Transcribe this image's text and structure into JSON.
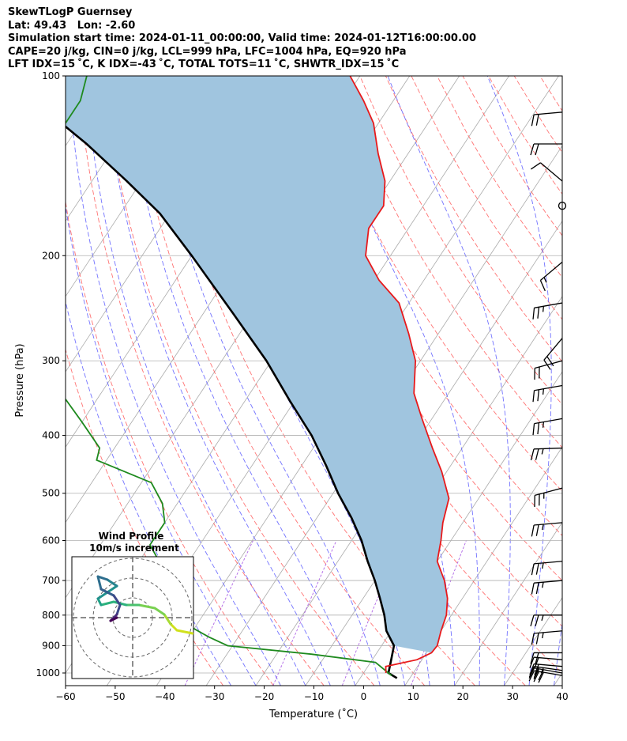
{
  "header": {
    "line1": "SkewTLogP Guernsey",
    "line2": "Lat: 49.43   Lon: -2.60",
    "line3": "Simulation start time: 2024-01-11_00:00:00, Valid time: 2024-01-12T16:00:00.00",
    "line4": "CAPE=20 j/kg, CIN=0 j/kg, LCL=999 hPa, LFC=1004 hPa, EQ=920 hPa",
    "line5": "LFT IDX=15 ˚C, K IDX=-43 ˚C, TOTAL TOTS=11 ˚C, SHWTR_IDX=15 ˚C"
  },
  "chart_data": {
    "type": "line",
    "subtype": "skew-T log-P diagram",
    "xlabel": "Temperature (˚C)",
    "ylabel": "Pressure (hPa)",
    "xlim": [
      -60,
      40
    ],
    "ylim": [
      1050,
      100
    ],
    "y_scale": "log",
    "x_ticks": [
      "−60",
      "−50",
      "−40",
      "−30",
      "−20",
      "−10",
      "0",
      "10",
      "20",
      "30",
      "40"
    ],
    "y_ticks": [
      "100",
      "200",
      "300",
      "400",
      "500",
      "600",
      "700",
      "800",
      "900",
      "1000"
    ],
    "grid": true,
    "series": [
      {
        "role": "temperature",
        "color": "#e8191b",
        "points": [
          [
            4.5,
            1000
          ],
          [
            3.6,
            975
          ],
          [
            9,
            950
          ],
          [
            11,
            925
          ],
          [
            11.2,
            900
          ],
          [
            10,
            850
          ],
          [
            9,
            800
          ],
          [
            7,
            750
          ],
          [
            4,
            700
          ],
          [
            0,
            650
          ],
          [
            -2,
            600
          ],
          [
            -4,
            560
          ],
          [
            -6,
            510
          ],
          [
            -11,
            460
          ],
          [
            -16,
            420
          ],
          [
            -22,
            375
          ],
          [
            -27,
            340
          ],
          [
            -31,
            300
          ],
          [
            -36,
            270
          ],
          [
            -42,
            240
          ],
          [
            -49,
            220
          ],
          [
            -55,
            200
          ],
          [
            -58,
            180
          ],
          [
            -58,
            165
          ],
          [
            -61,
            150
          ],
          [
            -66,
            135
          ],
          [
            -71,
            120
          ],
          [
            -76,
            110
          ],
          [
            -82,
            100
          ]
        ]
      },
      {
        "role": "dewpoint",
        "color": "#1e8a1e",
        "points": [
          [
            6,
            1010
          ],
          [
            5,
            1000
          ],
          [
            1,
            960
          ],
          [
            -13,
            930
          ],
          [
            -31,
            900
          ],
          [
            -36,
            870
          ],
          [
            -42,
            830
          ],
          [
            -47,
            780
          ],
          [
            -52,
            720
          ],
          [
            -56,
            650
          ],
          [
            -60,
            610
          ],
          [
            -60,
            560
          ],
          [
            -63,
            520
          ],
          [
            -68,
            480
          ],
          [
            -82,
            440
          ],
          [
            -83,
            420
          ],
          [
            -90,
            380
          ],
          [
            -98,
            340
          ],
          [
            -107,
            300
          ],
          [
            -125,
            270
          ],
          [
            -130,
            250
          ],
          [
            -130,
            230
          ],
          [
            -130,
            210
          ],
          [
            -131,
            190
          ],
          [
            -130,
            170
          ],
          [
            -132,
            155
          ],
          [
            -133,
            140
          ],
          [
            -133,
            125
          ],
          [
            -133,
            110
          ],
          [
            -135,
            100
          ]
        ]
      },
      {
        "role": "parcel",
        "color": "#000000",
        "points": [
          [
            7.4,
            1020
          ],
          [
            5,
            1000
          ],
          [
            3.8,
            950
          ],
          [
            2.5,
            900
          ],
          [
            -1,
            850
          ],
          [
            -3.5,
            800
          ],
          [
            -6.6,
            750
          ],
          [
            -10,
            700
          ],
          [
            -14,
            650
          ],
          [
            -18,
            600
          ],
          [
            -23,
            550
          ],
          [
            -29,
            500
          ],
          [
            -35,
            450
          ],
          [
            -42,
            400
          ],
          [
            -51,
            350
          ],
          [
            -61,
            300
          ],
          [
            -74,
            250
          ],
          [
            -90,
            200
          ],
          [
            -102,
            170
          ],
          [
            -113,
            150
          ],
          [
            -126,
            130
          ],
          [
            -138,
            115
          ],
          [
            -147,
            105
          ],
          [
            -152,
            100
          ]
        ]
      }
    ],
    "cape_shading": "#a0c5df",
    "background_lines": {
      "dry_adiabats": "#ff5a5a",
      "moist_adiabats": "#5a5aff",
      "mixing_ratio": "#9b3fe0",
      "isotherms": "#aaaaaa"
    },
    "wind_barbs": [
      {
        "p": 1010,
        "dir": 260,
        "spd": 32
      },
      {
        "p": 1000,
        "dir": 260,
        "spd": 30
      },
      {
        "p": 990,
        "dir": 262,
        "spd": 25
      },
      {
        "p": 975,
        "dir": 265,
        "spd": 20
      },
      {
        "p": 950,
        "dir": 265,
        "spd": 20
      },
      {
        "p": 925,
        "dir": 270,
        "spd": 20
      },
      {
        "p": 850,
        "dir": 275,
        "spd": 25
      },
      {
        "p": 800,
        "dir": 270,
        "spd": 25
      },
      {
        "p": 700,
        "dir": 275,
        "spd": 25
      },
      {
        "p": 650,
        "dir": 275,
        "spd": 25
      },
      {
        "p": 560,
        "dir": 275,
        "spd": 25
      },
      {
        "p": 490,
        "dir": 285,
        "spd": 25
      },
      {
        "p": 420,
        "dir": 272,
        "spd": 25
      },
      {
        "p": 375,
        "dir": 280,
        "spd": 25
      },
      {
        "p": 330,
        "dir": 280,
        "spd": 25
      },
      {
        "p": 300,
        "dir": 285,
        "spd": 20
      },
      {
        "p": 275,
        "dir": 320,
        "spd": 20
      },
      {
        "p": 240,
        "dir": 280,
        "spd": 25
      },
      {
        "p": 205,
        "dir": 310,
        "spd": 15
      },
      {
        "p": 165,
        "dir": null,
        "spd": 0
      },
      {
        "p": 150,
        "dir": 230,
        "spd": 10
      },
      {
        "p": 130,
        "dir": 270,
        "spd": 20
      },
      {
        "p": 115,
        "dir": 275,
        "spd": 20
      }
    ],
    "inset": {
      "title": "Wind Profile",
      "subtitle": "10m/s increment",
      "hodograph_u_v_ms": [
        [
          9.5,
          -2.5
        ],
        [
          7,
          -2
        ],
        [
          6,
          -1
        ],
        [
          5,
          0.5
        ],
        [
          3.5,
          1.5
        ],
        [
          1,
          2
        ],
        [
          -1,
          2
        ],
        [
          -3,
          2.5
        ],
        [
          -5,
          2
        ],
        [
          -5.5,
          3
        ],
        [
          -4,
          4
        ],
        [
          -2.5,
          5
        ],
        [
          -4,
          6
        ],
        [
          -5.5,
          6.5
        ],
        [
          -5,
          4.5
        ],
        [
          -3,
          3.5
        ],
        [
          -2,
          2
        ],
        [
          -2.5,
          0.5
        ],
        [
          -3.5,
          -0.5
        ],
        [
          -2.5,
          0
        ]
      ]
    }
  }
}
